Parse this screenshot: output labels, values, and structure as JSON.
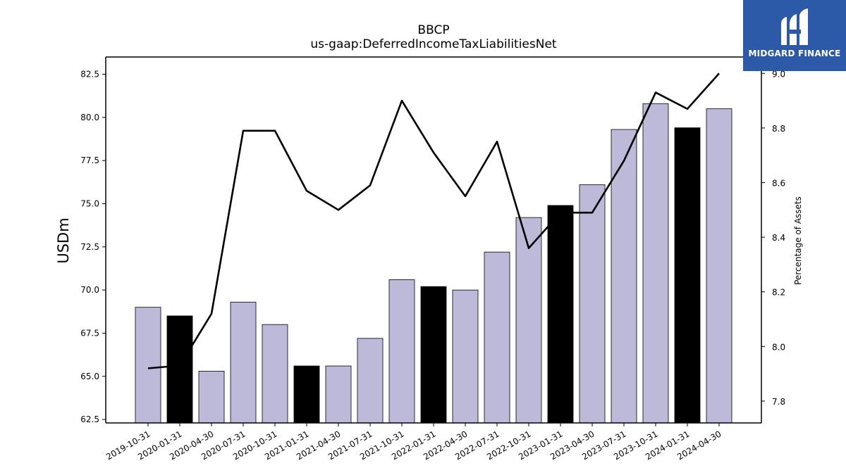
{
  "chart_data": {
    "type": "bar",
    "title": "BBCP",
    "subtitle": "us-gaap:DeferredIncomeTaxLiabilitiesNet",
    "ylabel": "USDm",
    "y2label": "Percentage of Assets",
    "ylim": [
      62.3,
      83.5
    ],
    "y2lim": [
      7.72,
      9.06
    ],
    "yticks": [
      "62.5",
      "65.0",
      "67.5",
      "70.0",
      "72.5",
      "75.0",
      "77.5",
      "80.0",
      "82.5"
    ],
    "y2ticks": [
      "7.8",
      "8.0",
      "8.2",
      "8.4",
      "8.6",
      "8.8",
      "9.0"
    ],
    "categories": [
      "2019-10-31",
      "2020-01-31",
      "2020-04-30",
      "2020-07-31",
      "2020-10-31",
      "2021-01-31",
      "2021-04-30",
      "2021-07-31",
      "2021-10-31",
      "2022-01-31",
      "2022-04-30",
      "2022-07-31",
      "2022-10-31",
      "2023-01-31",
      "2023-04-30",
      "2023-07-31",
      "2023-10-31",
      "2024-01-31",
      "2024-04-30"
    ],
    "series": [
      {
        "type": "bar",
        "axis": "left",
        "values": [
          69.0,
          68.5,
          65.3,
          69.3,
          68.0,
          65.6,
          65.6,
          67.2,
          70.6,
          70.2,
          70.0,
          72.2,
          74.2,
          74.9,
          76.1,
          79.3,
          80.8,
          79.4,
          80.5
        ],
        "colors": [
          "#bcb9d9",
          "#000000",
          "#bcb9d9",
          "#bcb9d9",
          "#bcb9d9",
          "#000000",
          "#bcb9d9",
          "#bcb9d9",
          "#bcb9d9",
          "#000000",
          "#bcb9d9",
          "#bcb9d9",
          "#bcb9d9",
          "#000000",
          "#bcb9d9",
          "#bcb9d9",
          "#bcb9d9",
          "#000000",
          "#bcb9d9"
        ]
      },
      {
        "type": "line",
        "axis": "right",
        "color": "#000000",
        "values": [
          7.92,
          7.93,
          8.12,
          8.79,
          8.79,
          8.57,
          8.5,
          8.59,
          8.9,
          8.71,
          8.55,
          8.75,
          8.36,
          8.49,
          8.49,
          8.68,
          8.93,
          8.87,
          9.0
        ]
      }
    ],
    "grid": false
  },
  "logo": {
    "text": "MIDGARD FINANCE",
    "background": "#2d5aa8",
    "icon": "midgard-logo-mark"
  }
}
